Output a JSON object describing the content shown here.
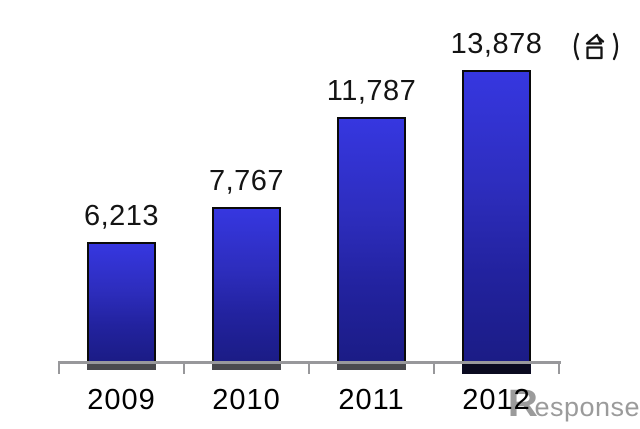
{
  "chart_data": {
    "type": "bar",
    "categories": [
      "2009",
      "2010",
      "2011",
      "2012"
    ],
    "values": [
      6213,
      7767,
      11787,
      13878
    ],
    "value_labels": [
      "6,213",
      "7,767",
      "11,787",
      "13,878"
    ],
    "unit_label": "（台）",
    "title": "",
    "xlabel": "",
    "ylabel": "",
    "ylim": [
      0,
      15000
    ],
    "grid": false,
    "legend": "none",
    "bar_fill_top": "#3637e0",
    "bar_fill_bottom": "#1b1c86",
    "bar_border_color": "#0a0a0a",
    "axis_color": "#98989b",
    "label_color": "#141414"
  },
  "watermark": {
    "logo": "R",
    "text": "esponse.",
    "color": "#9b9b9b"
  }
}
